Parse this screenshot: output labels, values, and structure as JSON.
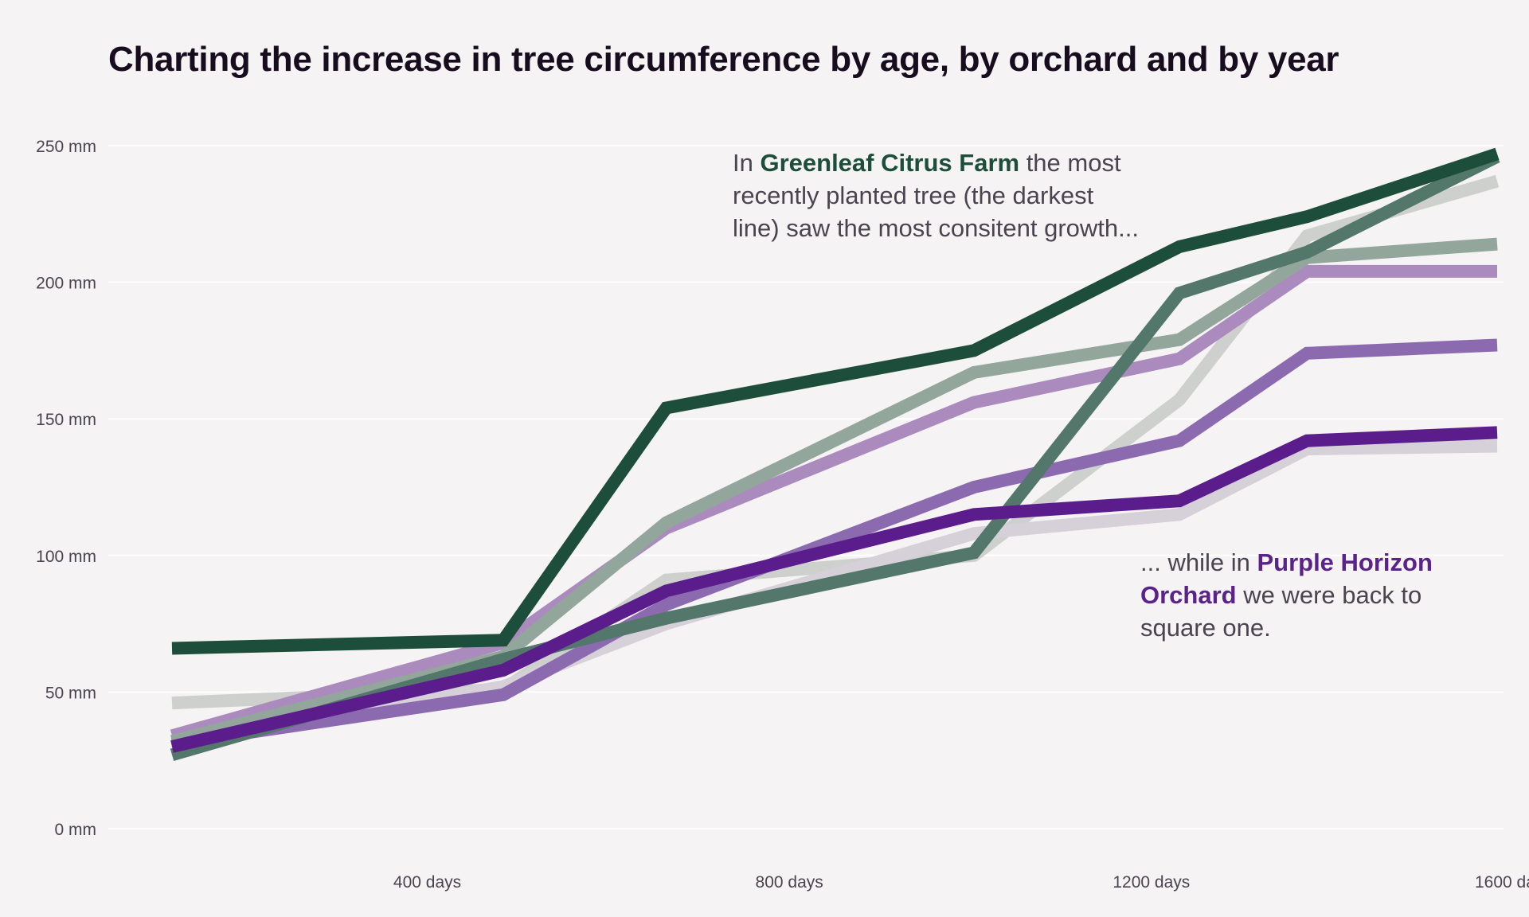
{
  "title": "Charting the increase in tree circumference by age, by orchard and by year",
  "chart_data": {
    "type": "line",
    "title": "Charting the increase in tree circumference by age, by orchard and by year",
    "x_ticks": [
      400,
      800,
      1200,
      1600
    ],
    "x_tick_labels": [
      "400 days",
      "800 days",
      "1200 days",
      "1600 days"
    ],
    "y_ticks": [
      0,
      50,
      100,
      150,
      200,
      250
    ],
    "y_tick_labels": [
      "0 mm",
      "50 mm",
      "100 mm",
      "150 mm",
      "200 mm",
      "250 mm"
    ],
    "xlim": [
      118,
      1582
    ],
    "ylim": [
      0,
      250
    ],
    "grid": true,
    "x": [
      118,
      484,
      664,
      1004,
      1231,
      1372,
      1582
    ],
    "series": [
      {
        "color": "#cdd0cd",
        "width": 16,
        "values": [
          46,
          51,
          91,
          100,
          157,
          217,
          237
        ]
      },
      {
        "color": "#d6d0d8",
        "width": 16,
        "values": [
          31,
          52,
          75,
          108,
          115,
          139,
          140
        ]
      },
      {
        "color": "#ab8bbe",
        "width": 16,
        "values": [
          34,
          68,
          110,
          156,
          172,
          204,
          204
        ]
      },
      {
        "color": "#8c6ab0",
        "width": 16,
        "values": [
          31,
          49,
          82,
          125,
          142,
          174,
          177
        ]
      },
      {
        "color": "#93a69c",
        "width": 16,
        "values": [
          32,
          63,
          112,
          167,
          179,
          209,
          214
        ]
      },
      {
        "color": "#53776a",
        "width": 16,
        "values": [
          27,
          62,
          77,
          101,
          196,
          211,
          246
        ]
      },
      {
        "color": "#5b1d8c",
        "width": 16,
        "values": [
          30,
          58,
          87,
          115,
          120,
          142,
          145
        ]
      },
      {
        "color": "#1d4d3b",
        "width": 16,
        "values": [
          66,
          69,
          154,
          175,
          213,
          224,
          247
        ]
      }
    ]
  },
  "annotations": {
    "green": {
      "pre": "In ",
      "highlight": "Greenleaf Citrus Farm",
      "post": " the most recently planted tree (the darkest line) saw the most consitent growth..."
    },
    "purple": {
      "pre": "... while in ",
      "highlight": "Purple Horizon Orchard",
      "post": " we were back to square one."
    }
  },
  "colors": {
    "background": "#f5f3f4",
    "green_accent": "#1d4d3b",
    "purple_accent": "#5b2289"
  }
}
